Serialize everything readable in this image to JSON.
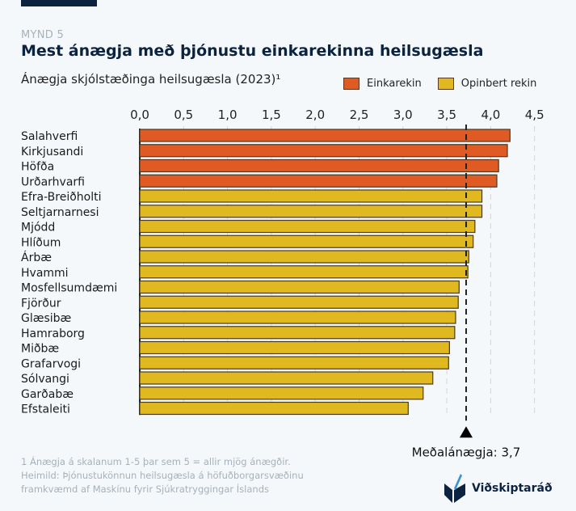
{
  "header": {
    "figure_label": "MYND 5",
    "title": "Mest ánægja með þjónustu einkarekinna heilsugæsla",
    "subtitle": "Ánægja skjólstæðinga heilsugæsla (2023)¹"
  },
  "legend": [
    {
      "label": "Einkarekin",
      "color": "#e05a24"
    },
    {
      "label": "Opinbert rekin",
      "color": "#e0b820"
    }
  ],
  "footnote": {
    "line1": "1 Ánægja á skalanum 1-5 þar sem 5 = allir mjög ánægðir.",
    "line2": "Heimild: Þjónustukönnun heilsugæsla á höfuðborgarsvæðinu",
    "line3": "framkvæmd af Maskínu fyrir Sjúkratryggingar Íslands"
  },
  "logo": {
    "text": "Viðskiptaráð",
    "icon": "vidskiptarad-logo-icon"
  },
  "chart_data": {
    "type": "bar",
    "orientation": "horizontal",
    "title": "Mest ánægja með þjónustu einkarekinna heilsugæsla",
    "subtitle": "Ánægja skjólstæðinga heilsugæsla (2023)",
    "xlabel": "",
    "ylabel": "",
    "xlim": [
      0,
      4.5
    ],
    "x_ticks": [
      "0,0",
      "0,5",
      "1,0",
      "1,5",
      "2,0",
      "2,5",
      "3,0",
      "3,5",
      "4,0",
      "4,5"
    ],
    "x_tick_values": [
      0,
      0.5,
      1.0,
      1.5,
      2.0,
      2.5,
      3.0,
      3.5,
      4.0,
      4.5
    ],
    "grid": true,
    "legend_position": "top-right",
    "categories": [
      "Salahverfi",
      "Kirkjusandi",
      "Höfða",
      "Urðarhvarfi",
      "Efra-Breiðholti",
      "Seltjarnarnesi",
      "Mjódd",
      "Hlíðum",
      "Árbæ",
      "Hvammi",
      "Mosfellsumdæmi",
      "Fjörður",
      "Glæsibæ",
      "Hamraborg",
      "Miðbæ",
      "Grafarvogi",
      "Sólvangi",
      "Garðabæ",
      "Efstaleiti"
    ],
    "values": [
      4.22,
      4.19,
      4.09,
      4.07,
      3.9,
      3.9,
      3.82,
      3.8,
      3.75,
      3.74,
      3.64,
      3.63,
      3.6,
      3.59,
      3.53,
      3.52,
      3.34,
      3.23,
      3.06
    ],
    "groups": [
      "Einkarekin",
      "Einkarekin",
      "Einkarekin",
      "Einkarekin",
      "Opinbert rekin",
      "Opinbert rekin",
      "Opinbert rekin",
      "Opinbert rekin",
      "Opinbert rekin",
      "Opinbert rekin",
      "Opinbert rekin",
      "Opinbert rekin",
      "Opinbert rekin",
      "Opinbert rekin",
      "Opinbert rekin",
      "Opinbert rekin",
      "Opinbert rekin",
      "Opinbert rekin",
      "Opinbert rekin"
    ],
    "series_colors": {
      "Einkarekin": "#e05a24",
      "Opinbert rekin": "#e0b820"
    },
    "reference_line": {
      "value": 3.72,
      "label": "Meðalánægja: 3,7"
    }
  }
}
